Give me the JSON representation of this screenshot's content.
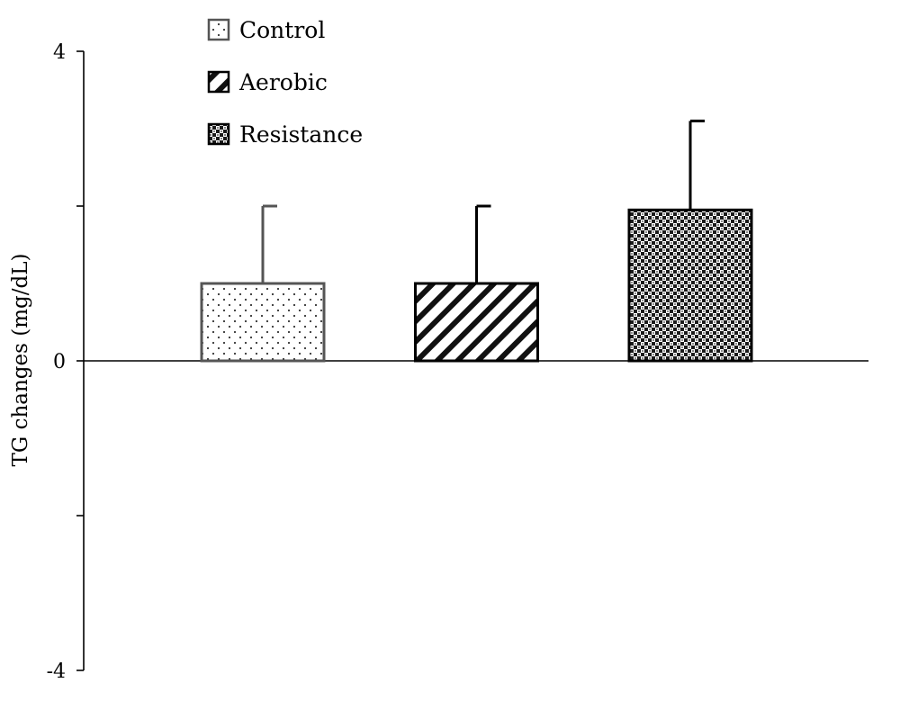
{
  "chart_data": {
    "type": "bar",
    "categories": [
      "Control",
      "Aerobic",
      "Resistance"
    ],
    "values": [
      1.0,
      1.0,
      1.95
    ],
    "error_bars": [
      1.0,
      1.0,
      1.15
    ],
    "ylabel": "TG changes (mg/dL)",
    "ylim": [
      -4,
      4
    ],
    "y_ticks": [
      -4,
      -2,
      0,
      2,
      4
    ],
    "y_tick_labels": [
      "-4",
      "",
      "0",
      "",
      "4"
    ],
    "grid": false,
    "legend": {
      "placement": "top-left",
      "entries": [
        {
          "label": "Control",
          "pattern": "dots"
        },
        {
          "label": "Aerobic",
          "pattern": "diagonal-stripes"
        },
        {
          "label": "Resistance",
          "pattern": "checkered"
        }
      ]
    },
    "colors": {
      "axis": "#000000",
      "control_outline": "#555555",
      "bar_outline": "#000000",
      "fill": "#ffffff"
    }
  }
}
